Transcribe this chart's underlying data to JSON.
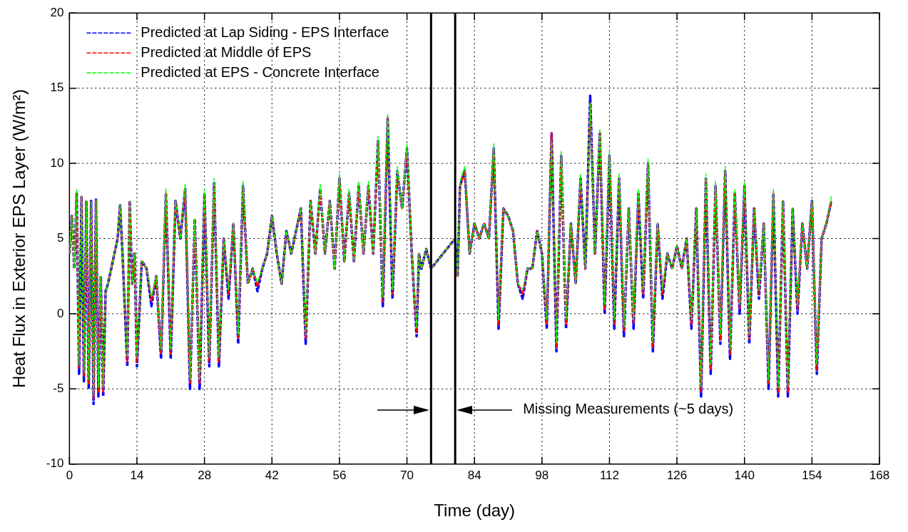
{
  "chart_data": {
    "type": "line",
    "xlabel": "Time (day)",
    "ylabel": "Heat Flux in Exterior EPS Layer (W/m²)",
    "xlim": [
      0,
      168
    ],
    "xticks": [
      0,
      14,
      28,
      42,
      56,
      70,
      84,
      98,
      112,
      126,
      140,
      154,
      168
    ],
    "ylim": [
      -10,
      20
    ],
    "yticks": [
      -10,
      -5,
      0,
      5,
      10,
      15,
      20
    ],
    "grid": true,
    "legend": "top left",
    "line_style": "dashed",
    "marker": "none",
    "x": [
      0,
      0.5,
      1,
      1.5,
      2,
      2.5,
      3,
      3.5,
      4,
      4.5,
      5,
      5.5,
      6,
      6.5,
      7,
      7.5,
      8,
      9,
      10,
      10.5,
      11,
      12,
      12.5,
      13,
      13.5,
      14,
      15,
      16,
      17,
      18,
      19,
      20,
      21,
      22,
      23,
      24,
      25,
      26,
      27,
      28,
      29,
      30,
      31,
      32,
      33,
      34,
      35,
      36,
      37,
      38,
      39,
      40,
      41,
      42,
      43,
      44,
      45,
      46,
      47,
      48,
      49,
      50,
      51,
      52,
      53,
      54,
      55,
      56,
      57,
      58,
      59,
      60,
      61,
      62,
      63,
      64,
      65,
      66,
      67,
      68,
      69,
      70,
      71,
      72,
      72.5,
      73,
      74,
      75,
      80,
      80.5,
      81,
      82,
      83,
      84,
      85,
      86,
      87,
      88,
      89,
      90,
      91,
      92,
      93,
      94,
      95,
      96,
      97,
      98,
      99,
      100,
      101,
      102,
      103,
      104,
      105,
      106,
      107,
      108,
      109,
      110,
      111,
      112,
      113,
      114,
      115,
      116,
      117,
      118,
      119,
      120,
      121,
      122,
      123,
      124,
      125,
      126,
      127,
      128,
      129,
      130,
      131,
      132,
      133,
      134,
      135,
      136,
      137,
      138,
      139,
      140,
      141,
      142,
      143,
      144,
      145,
      146,
      147,
      148,
      149,
      150,
      151,
      152,
      153,
      154,
      155,
      156,
      157,
      158
    ],
    "series": [
      {
        "name": "Predicted at Lap Siding - EPS Interface",
        "color": "#0000ff",
        "values": [
          4,
          6.5,
          3,
          8,
          -4,
          7.8,
          -4.5,
          7.5,
          -5,
          7.5,
          -6,
          7.6,
          -5.5,
          2.5,
          -5.5,
          1.5,
          2,
          3.5,
          5,
          7.2,
          4,
          -3.5,
          7.5,
          2,
          4,
          -3.5,
          3.5,
          3,
          0.5,
          2.5,
          -3,
          8,
          -3,
          7.5,
          5,
          8.3,
          -5,
          6.3,
          -5,
          8,
          -3.5,
          8.7,
          -3.5,
          5,
          1,
          6,
          -2,
          8.5,
          2,
          3,
          1.5,
          3,
          4,
          6.5,
          4,
          2,
          5.5,
          4,
          5.5,
          7,
          -2,
          7.5,
          4,
          8.3,
          4,
          7.5,
          3,
          9,
          3.5,
          8,
          3.5,
          8.5,
          4,
          8.5,
          4,
          11.5,
          0.5,
          13,
          1,
          9.5,
          7,
          11,
          4,
          -1.5,
          4,
          3,
          4.3,
          3,
          5,
          2.5,
          8.5,
          9.5,
          4,
          6,
          5,
          6,
          5,
          11,
          -1,
          7,
          6.5,
          5.5,
          2,
          1,
          3,
          3,
          5.5,
          4,
          -1,
          12,
          -2.5,
          10.5,
          -1,
          6,
          2,
          9,
          3,
          14.5,
          4,
          12,
          0,
          10.5,
          -1,
          9,
          -1.5,
          7,
          -1,
          8,
          1,
          10,
          -2.5,
          6,
          1,
          4,
          3,
          4.5,
          3,
          5,
          -1,
          7,
          -5.5,
          9,
          -4,
          8.5,
          -2,
          9.5,
          -3,
          8,
          0,
          8.5,
          -2,
          7,
          1,
          6,
          -5,
          8,
          -5.5,
          7.5,
          -5.5,
          7,
          0,
          6,
          3,
          7.5,
          -4,
          5,
          6,
          7.5
        ]
      },
      {
        "name": "Predicted at Middle of EPS",
        "color": "#ff0000",
        "values": [
          4,
          6.5,
          3,
          8,
          -3.7,
          7.8,
          -4.2,
          7.5,
          -4.7,
          7.5,
          -5.7,
          7.6,
          -5.2,
          2.5,
          -5.2,
          1.5,
          2,
          3.5,
          5,
          7.2,
          4,
          -3.2,
          7.5,
          2,
          4,
          -3.2,
          3.5,
          3,
          0.8,
          2.5,
          -2.7,
          8,
          -2.7,
          7.5,
          5,
          8.3,
          -4.7,
          6.3,
          -4.7,
          8,
          -3.2,
          8.7,
          -3.2,
          5,
          1.3,
          6,
          -1.7,
          8.5,
          2,
          3,
          1.8,
          3,
          4,
          6.5,
          4,
          2,
          5.5,
          4,
          5.5,
          7,
          -1.7,
          7.5,
          4,
          8.3,
          4,
          7.5,
          3,
          9,
          3.5,
          8,
          3.5,
          8.5,
          4,
          8.5,
          4,
          11.5,
          0.8,
          13,
          1.3,
          9.5,
          7,
          11,
          4,
          -1.2,
          4,
          3,
          4.3,
          3,
          5,
          2.5,
          8.5,
          9.5,
          4,
          6,
          5,
          6,
          5,
          11,
          -0.7,
          7,
          6.5,
          5.5,
          2,
          1.3,
          3,
          3,
          5.5,
          4,
          -0.7,
          12,
          -2.2,
          10.5,
          -0.7,
          6,
          2,
          9,
          3,
          14,
          4,
          12,
          0.3,
          10.5,
          -0.7,
          9,
          -1.2,
          7,
          -0.7,
          8,
          1.3,
          10,
          -2.2,
          6,
          1.3,
          4,
          3,
          4.5,
          3,
          5,
          -0.7,
          7,
          -5.2,
          9,
          -3.7,
          8.5,
          -1.7,
          9.5,
          -2.7,
          8,
          0.3,
          8.5,
          -1.7,
          7,
          1.3,
          6,
          -4.7,
          8,
          -5.2,
          7.5,
          -5.2,
          7,
          0.3,
          6,
          3,
          7.5,
          -3.7,
          5,
          6,
          7.5
        ]
      },
      {
        "name": "Predicted at EPS - Concrete Interface",
        "color": "#00ff00",
        "values": [
          4,
          6.5,
          3,
          8.3,
          -3.4,
          7.8,
          -3.9,
          7.5,
          -4.4,
          7.5,
          -5.4,
          7.6,
          -4.9,
          2.5,
          -4.9,
          1.5,
          2,
          3.5,
          5,
          7.2,
          4,
          -2.9,
          7.5,
          2,
          4,
          -2.9,
          3.5,
          3,
          1.1,
          2.5,
          -2.4,
          8.3,
          -2.4,
          7.5,
          5,
          8.6,
          -4.4,
          6.3,
          -4.4,
          8.3,
          -2.9,
          9,
          -2.9,
          5,
          1.6,
          6,
          -1.4,
          8.8,
          2,
          3,
          2.1,
          3,
          4,
          6.5,
          4,
          2,
          5.5,
          4,
          5.5,
          7,
          -1.4,
          7.5,
          4,
          8.6,
          4,
          7.5,
          3,
          9.3,
          3.5,
          8.3,
          3.5,
          8.8,
          4,
          8.8,
          4,
          11.8,
          1.1,
          13.3,
          1.6,
          9.8,
          7,
          11.3,
          4,
          -0.9,
          4,
          3,
          4.3,
          3,
          5,
          2.5,
          8.8,
          9.8,
          4,
          6,
          5,
          6,
          5,
          11.3,
          -0.4,
          7,
          6.5,
          5.5,
          2,
          1.6,
          3,
          3,
          5.5,
          4,
          -0.4,
          11.5,
          -1.9,
          10.8,
          -0.4,
          6,
          2,
          9.3,
          3,
          14,
          4,
          12.3,
          0.6,
          10.8,
          -0.4,
          9.3,
          -0.9,
          7,
          -0.4,
          8.3,
          1.6,
          10.3,
          -1.9,
          6,
          1.6,
          4,
          3,
          4.5,
          3,
          5,
          -0.4,
          7,
          -4.9,
          9.3,
          -3.4,
          8.8,
          -1.4,
          9.8,
          -2.4,
          8.3,
          0.6,
          8.8,
          -1.4,
          7,
          1.6,
          6,
          -4.4,
          8.3,
          -4.9,
          7.5,
          -4.9,
          7,
          0.6,
          6,
          3,
          7.5,
          -3.4,
          5,
          6,
          7.8
        ]
      }
    ],
    "ref_lines": [
      {
        "axis": "x",
        "value": 75,
        "color": "#000000",
        "line_style": "solid"
      },
      {
        "axis": "x",
        "value": 80,
        "color": "#000000",
        "line_style": "solid"
      }
    ],
    "annotations": [
      "Missing Measurements (~5 days)"
    ]
  }
}
